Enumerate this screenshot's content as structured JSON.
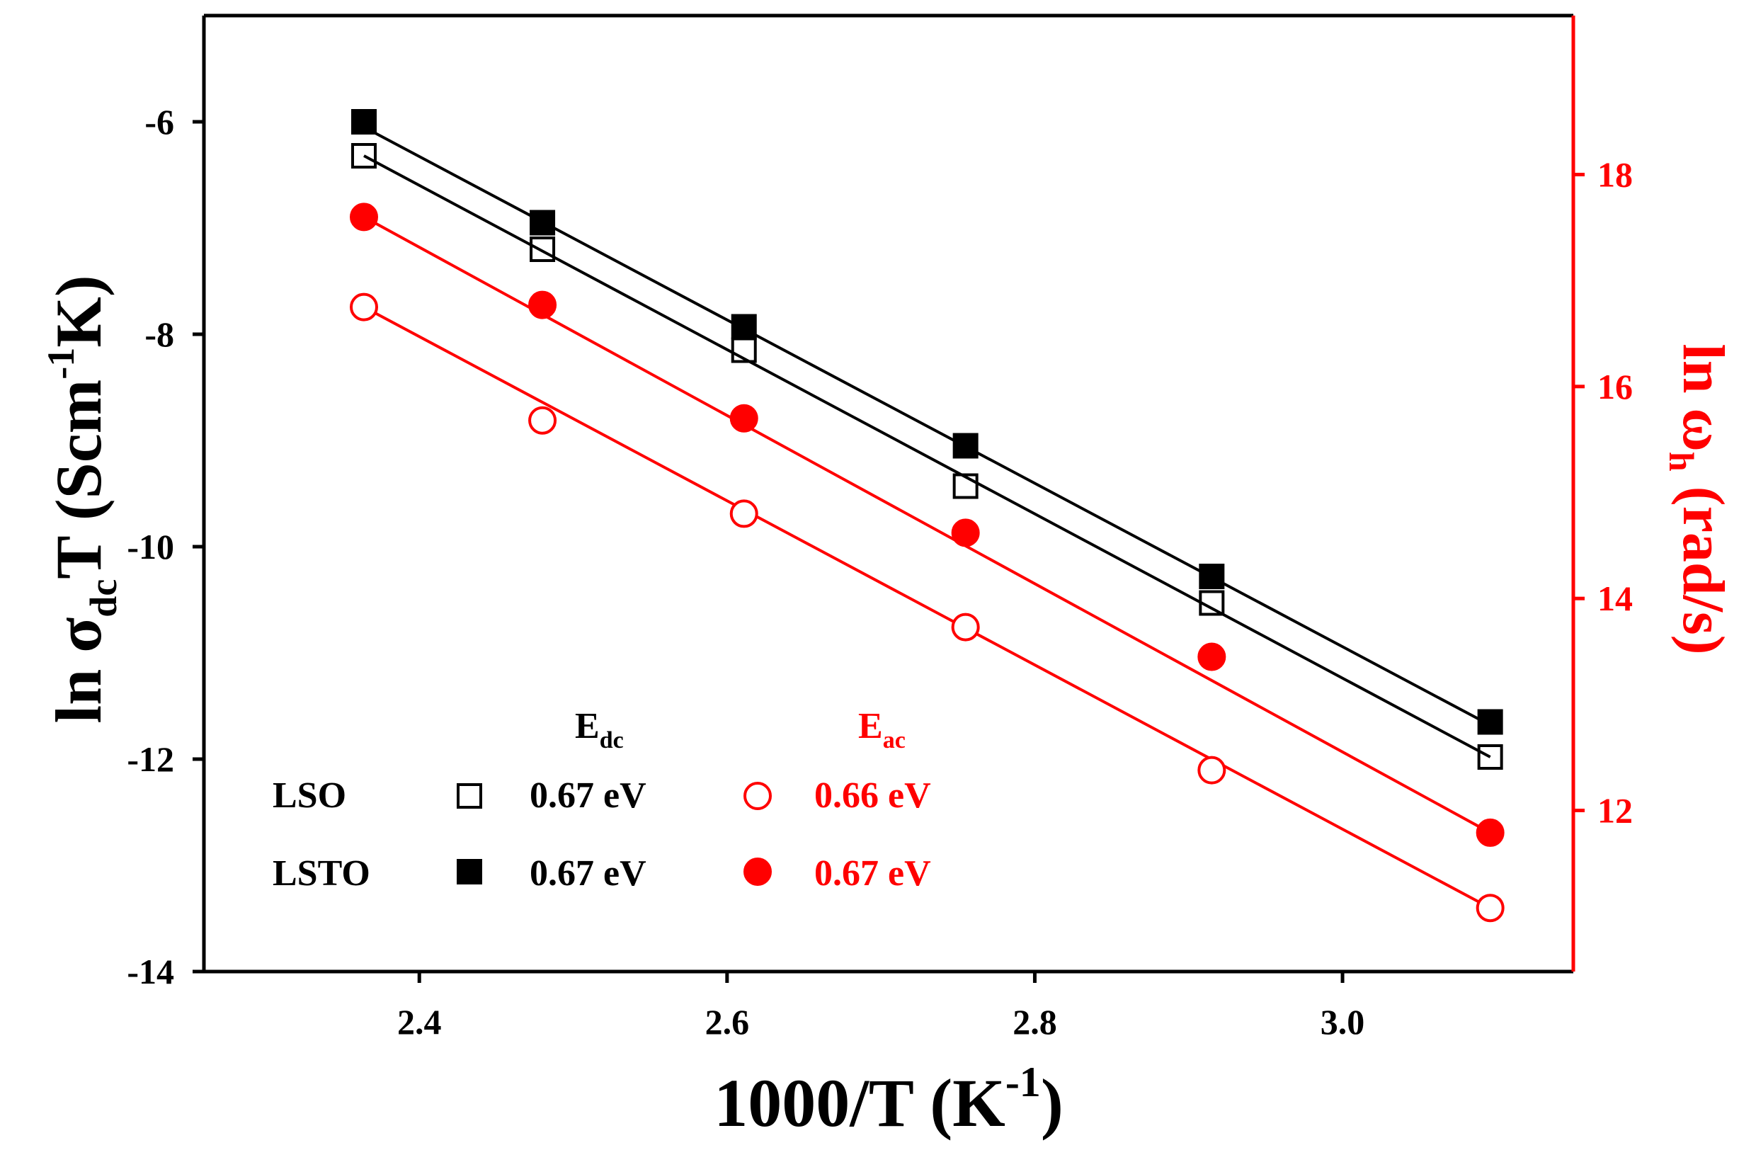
{
  "chart_data": {
    "type": "scatter",
    "x_axis": {
      "label_main": "1000/T (K",
      "label_sup": "-1",
      "label_end": ")",
      "range": [
        2.26,
        3.15
      ],
      "ticks": [
        2.4,
        2.6,
        2.8,
        3.0
      ],
      "tick_labels": [
        "2.4",
        "2.6",
        "2.8",
        "3.0"
      ]
    },
    "y_left": {
      "label_pre": "ln σ",
      "label_sub": "dc",
      "label_mid": "T (Scm",
      "label_sup": "-1",
      "label_end": "K)",
      "range": [
        -14,
        -5
      ],
      "ticks": [
        -6,
        -8,
        -10,
        -12,
        -14
      ],
      "tick_labels": [
        "-6",
        "-8",
        "-10",
        "-12",
        "-14"
      ],
      "color": "#000000"
    },
    "y_right": {
      "label_pre": "ln ω",
      "label_sub": "h",
      "label_end": " (rad/s)",
      "range": [
        10.48,
        19.5
      ],
      "ticks": [
        12,
        14,
        16,
        18
      ],
      "tick_labels": [
        "12",
        "14",
        "16",
        "18"
      ],
      "color": "#ff0000"
    },
    "series": [
      {
        "name": "LSO dc",
        "axis": "left",
        "marker": "square-open",
        "color": "#000000",
        "x": [
          2.364,
          2.48,
          2.611,
          2.755,
          2.915,
          3.096
        ],
        "y": [
          -6.32,
          -7.2,
          -8.15,
          -9.43,
          -10.53,
          -11.98
        ],
        "fit": {
          "x": [
            2.364,
            3.096
          ],
          "y": [
            -6.32,
            -11.98
          ]
        }
      },
      {
        "name": "LSTO dc",
        "axis": "left",
        "marker": "square-filled",
        "color": "#000000",
        "x": [
          2.364,
          2.48,
          2.611,
          2.755,
          2.915,
          3.096
        ],
        "y": [
          -6.0,
          -6.95,
          -7.93,
          -9.05,
          -10.28,
          -11.65
        ],
        "fit": {
          "x": [
            2.364,
            3.096
          ],
          "y": [
            -6.05,
            -11.68
          ]
        }
      },
      {
        "name": "LSO ac",
        "axis": "right",
        "marker": "circle-open",
        "color": "#ff0000",
        "x": [
          2.364,
          2.48,
          2.611,
          2.755,
          2.915,
          3.096
        ],
        "y": [
          16.75,
          15.68,
          14.8,
          13.73,
          12.38,
          11.08
        ],
        "fit": {
          "x": [
            2.364,
            3.096
          ],
          "y": [
            16.75,
            11.08
          ]
        }
      },
      {
        "name": "LSTO ac",
        "axis": "right",
        "marker": "circle-filled",
        "color": "#ff0000",
        "x": [
          2.364,
          2.48,
          2.611,
          2.755,
          2.915,
          3.096
        ],
        "y": [
          17.6,
          16.77,
          15.7,
          14.62,
          13.45,
          11.79
        ],
        "fit": {
          "x": [
            2.364,
            3.096
          ],
          "y": [
            17.6,
            11.79
          ]
        }
      }
    ],
    "legend": {
      "position": "bottom-left",
      "edc_label": "E",
      "edc_sub": "dc",
      "eac_label": "E",
      "eac_sub": "ac",
      "rows": [
        {
          "sample": "LSO",
          "edc": "0.67 eV",
          "eac": "0.66 eV"
        },
        {
          "sample": "LSTO",
          "edc": "0.67 eV",
          "eac": "0.67 eV"
        }
      ]
    }
  }
}
